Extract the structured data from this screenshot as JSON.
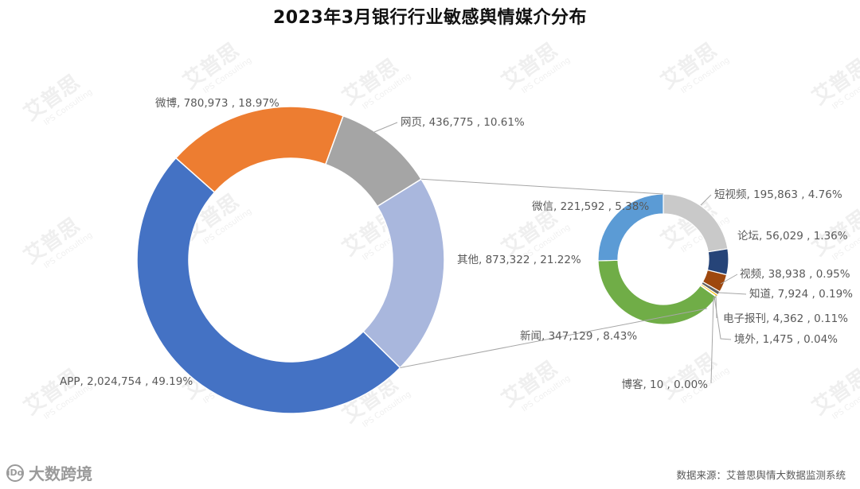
{
  "chart_data": {
    "type": "pie",
    "title": "2023年3月银行行业敏感舆情媒介分布",
    "main": [
      {
        "name": "网页",
        "value": 436775,
        "label": "网页, 436,775 , 10.61%",
        "color": "#a5a5a5"
      },
      {
        "name": "其他",
        "value": 873322,
        "label": "其他, 873,322 , 21.22%",
        "color": "#a9b7dd"
      },
      {
        "name": "APP",
        "value": 2024754,
        "label": "APP, 2,024,754 , 49.19%",
        "color": "#4472c4"
      },
      {
        "name": "微博",
        "value": 780973,
        "label": "微博, 780,973 , 18.97%",
        "color": "#ed7d31"
      }
    ],
    "sub": [
      {
        "name": "短视频",
        "value": 195863,
        "label": "短视频, 195,863 , 4.76%",
        "color": "#c9c9c9"
      },
      {
        "name": "论坛",
        "value": 56029,
        "label": "论坛, 56,029 , 1.36%",
        "color": "#264478"
      },
      {
        "name": "视频",
        "value": 38938,
        "label": "视频, 38,938 , 0.95%",
        "color": "#9e480e"
      },
      {
        "name": "知道",
        "value": 7924,
        "label": "知道, 7,924 , 0.19%",
        "color": "#636363"
      },
      {
        "name": "电子报刊",
        "value": 4362,
        "label": "电子报刊, 4,362 , 0.11%",
        "color": "#ffc000"
      },
      {
        "name": "境外",
        "value": 1475,
        "label": "境外, 1,475 , 0.04%",
        "color": "#2f5597"
      },
      {
        "name": "博客",
        "value": 10,
        "label": "博客, 10 , 0.00%",
        "color": "#7f7f7f"
      },
      {
        "name": "新闻",
        "value": 347129,
        "label": "新闻, 347,129 , 8.43%",
        "color": "#70ad47"
      },
      {
        "name": "微信",
        "value": 221592,
        "label": "微信, 221,592 , 5.38%",
        "color": "#5b9bd5"
      }
    ]
  },
  "watermark_text": "艾普思",
  "watermark_sub": "IPS Consulting",
  "footer": {
    "brand": "大数跨境",
    "brand_logo": "iDo",
    "source": "数据来源：艾普思舆情大数据监测系统"
  }
}
